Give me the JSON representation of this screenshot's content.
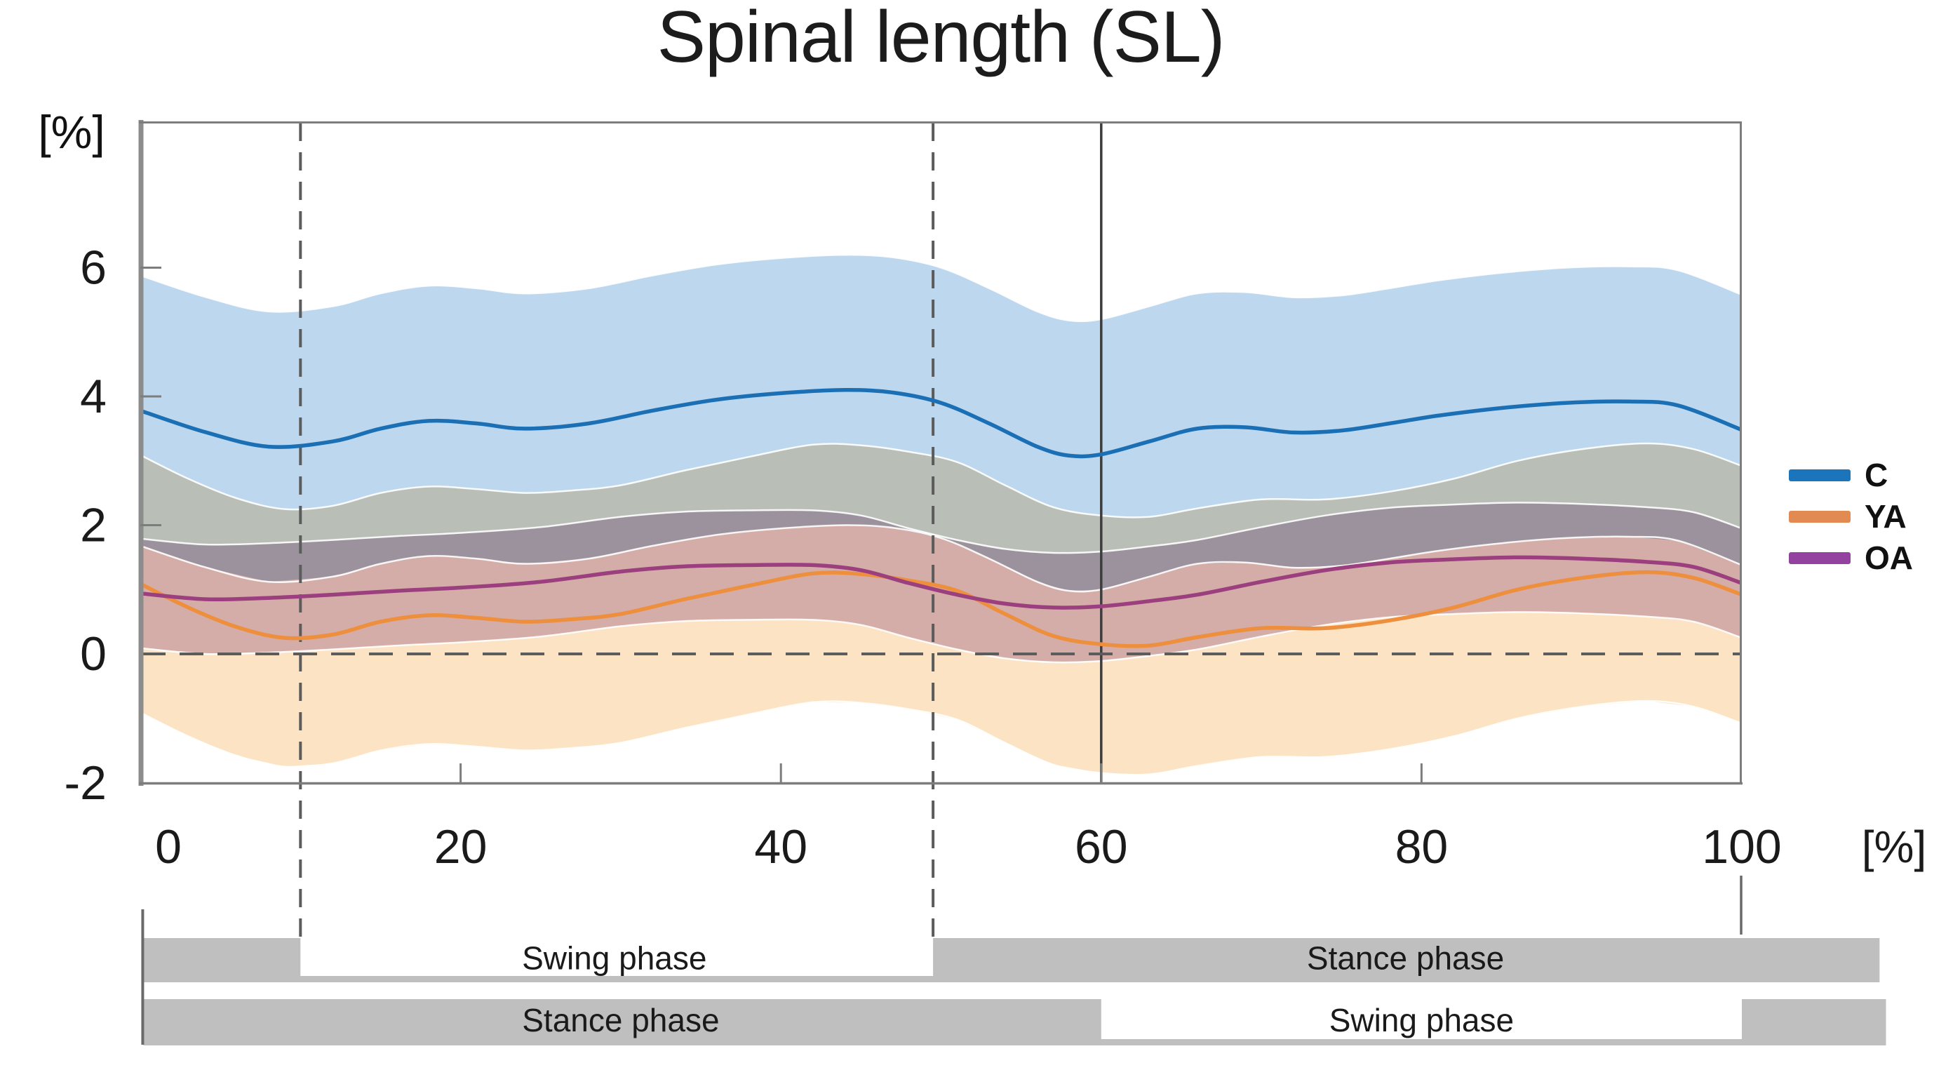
{
  "chart_data": {
    "type": "line",
    "title": "Spinal length (SL)",
    "y_unit": "[%]",
    "x_unit": "[%]",
    "xlim": [
      0,
      100
    ],
    "ylim": [
      -2.03,
      8.27
    ],
    "x_ticks": [
      0,
      20,
      40,
      60,
      80,
      100
    ],
    "y_ticks": [
      6,
      4,
      2,
      0,
      -2
    ],
    "grid": false,
    "legend_position": "right-outside",
    "series": [
      {
        "name": "C",
        "line_color": "#1b6fb5",
        "band_color": "#bcd7ee",
        "band_halfwidth": 2.1,
        "x": [
          0,
          4,
          8,
          12,
          15,
          18,
          21,
          24,
          28,
          32,
          36,
          40,
          44,
          47,
          50,
          53,
          56,
          58,
          60,
          63,
          66,
          69,
          72,
          75,
          78,
          81,
          85,
          89,
          93,
          96,
          100
        ],
        "y": [
          3.78,
          3.45,
          3.22,
          3.3,
          3.5,
          3.62,
          3.58,
          3.5,
          3.58,
          3.78,
          3.95,
          4.05,
          4.1,
          4.06,
          3.9,
          3.58,
          3.22,
          3.08,
          3.1,
          3.3,
          3.5,
          3.52,
          3.44,
          3.47,
          3.58,
          3.7,
          3.82,
          3.9,
          3.92,
          3.86,
          3.48
        ]
      },
      {
        "name": "YA",
        "line_color": "#ee8f3e",
        "band_color": "#fbe3c4",
        "band_halfwidth": 2.0,
        "x": [
          0,
          3,
          6,
          9,
          12,
          15,
          18,
          21,
          24,
          27,
          30,
          34,
          38,
          42,
          45,
          48,
          51,
          54,
          57,
          60,
          63,
          66,
          70,
          74,
          78,
          82,
          86,
          90,
          94,
          97,
          100
        ],
        "y": [
          1.09,
          0.72,
          0.42,
          0.25,
          0.3,
          0.5,
          0.6,
          0.56,
          0.5,
          0.54,
          0.62,
          0.85,
          1.06,
          1.25,
          1.24,
          1.14,
          0.98,
          0.62,
          0.28,
          0.15,
          0.13,
          0.26,
          0.4,
          0.4,
          0.52,
          0.72,
          1.0,
          1.18,
          1.27,
          1.18,
          0.92
        ]
      },
      {
        "name": "OA",
        "line_color": "#9c3f7f",
        "band_color": "#d8c3db",
        "band_halfwidth": 0.85,
        "x": [
          0,
          4,
          8,
          12,
          16,
          20,
          25,
          30,
          34,
          38,
          42,
          45,
          48,
          51,
          54,
          57,
          60,
          63,
          66,
          70,
          74,
          78,
          82,
          86,
          90,
          94,
          97,
          100
        ],
        "y": [
          0.94,
          0.85,
          0.87,
          0.92,
          0.98,
          1.03,
          1.12,
          1.28,
          1.36,
          1.38,
          1.38,
          1.3,
          1.1,
          0.92,
          0.78,
          0.72,
          0.74,
          0.82,
          0.92,
          1.12,
          1.3,
          1.42,
          1.47,
          1.5,
          1.48,
          1.43,
          1.35,
          1.1
        ]
      }
    ],
    "reference_lines": {
      "dashed_vertical_x": [
        10,
        49.5
      ],
      "solid_vertical_x": 60,
      "dashed_horizontal_y": 0
    }
  },
  "legend": [
    {
      "label": "C",
      "color": "#1b75bc"
    },
    {
      "label": "YA",
      "color": "#e18a52"
    },
    {
      "label": "OA",
      "color": "#9442a0"
    }
  ],
  "phase_bars": [
    {
      "from": 0.2,
      "to": 108.6,
      "white_gap": {
        "from": 10,
        "to": 49.5
      },
      "labels": [
        {
          "x": 29.6,
          "text": "Swing phase"
        },
        {
          "x": 79.0,
          "text": "Stance phase"
        }
      ]
    },
    {
      "from": 0.2,
      "to": 109.0,
      "white_gap": {
        "from": 60,
        "to": 100
      },
      "labels": [
        {
          "x": 30.0,
          "text": "Stance phase"
        },
        {
          "x": 80.0,
          "text": "Swing phase"
        }
      ]
    }
  ],
  "colors": {
    "background": "#ffffff",
    "axis": "#7d7d7d",
    "tick_text": "#1a1a1a",
    "dashed_reference": "#5c5c5c",
    "solid_reference": "#3d3d3d",
    "phase_bar_gray": "#bfbfbf",
    "leader_line": "#6a6a6a",
    "band_edge": "#ffffff"
  }
}
